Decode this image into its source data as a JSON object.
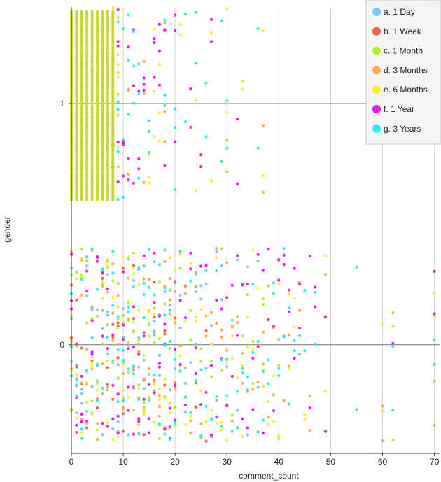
{
  "chart_data": {
    "type": "scatter",
    "title": "",
    "xlabel": "comment_count",
    "ylabel": "gender",
    "xlim": [
      0,
      71
    ],
    "ylim": [
      -0.45,
      1.4
    ],
    "x_ticks": [
      0,
      10,
      20,
      30,
      40,
      50,
      60,
      70
    ],
    "y_ticks": [
      0,
      1
    ],
    "x_grid": true,
    "y_grid": true,
    "jitter": "vertical jitter of ±0.4 around each gender value (0 and 1)",
    "legend": {
      "placement": "top-right"
    },
    "series": [
      {
        "name": "a. 1 Day",
        "color": "#7EC8F4"
      },
      {
        "name": "b. 1 Week",
        "color": "#F4604A"
      },
      {
        "name": "c. 1 Month",
        "color": "#B5EC3A"
      },
      {
        "name": "d. 3 Months",
        "color": "#F5AE50"
      },
      {
        "name": "e. 6 Months",
        "color": "#F7EF2E"
      },
      {
        "name": "f. 1 Year",
        "color": "#E61DEB"
      },
      {
        "name": "g. 3 Years",
        "color": "#28EFE9"
      }
    ],
    "points": [
      [
        1,
        1,
        2
      ],
      [
        1,
        1,
        4
      ],
      [
        2,
        1,
        3
      ],
      [
        2,
        1,
        4
      ],
      [
        3,
        1,
        2
      ],
      [
        3,
        1,
        4
      ],
      [
        4,
        1,
        3
      ],
      [
        4,
        1,
        4
      ],
      [
        5,
        1,
        3
      ],
      [
        5,
        1,
        2
      ],
      [
        6,
        1,
        4
      ],
      [
        6,
        1,
        2
      ],
      [
        7,
        1,
        4
      ],
      [
        7,
        1,
        6
      ],
      [
        7,
        1,
        3
      ],
      [
        8,
        1,
        4
      ],
      [
        8,
        1,
        5
      ],
      [
        8,
        1,
        6
      ],
      [
        8,
        1,
        3
      ],
      [
        9,
        1,
        4
      ],
      [
        9,
        1,
        5
      ],
      [
        9,
        1,
        6
      ],
      [
        9,
        1,
        2
      ],
      [
        10,
        1,
        5
      ],
      [
        10,
        1,
        6
      ],
      [
        11,
        1,
        5
      ],
      [
        11,
        1,
        6
      ],
      [
        11,
        1,
        3
      ],
      [
        12,
        1,
        5
      ],
      [
        12,
        1,
        6
      ],
      [
        13,
        1,
        5
      ],
      [
        13,
        1,
        6
      ],
      [
        14,
        1,
        3
      ],
      [
        14,
        1,
        5
      ],
      [
        15,
        1,
        4
      ],
      [
        15,
        1,
        6
      ],
      [
        16,
        1,
        4
      ],
      [
        16,
        1,
        5
      ],
      [
        17,
        1,
        4
      ],
      [
        17,
        1,
        5
      ],
      [
        18,
        1,
        5
      ],
      [
        18,
        1,
        6
      ],
      [
        18,
        1,
        3
      ],
      [
        20,
        1,
        5
      ],
      [
        20,
        1,
        6
      ],
      [
        21,
        1,
        4
      ],
      [
        22,
        1,
        6
      ],
      [
        23,
        1,
        5
      ],
      [
        24,
        1,
        4
      ],
      [
        24,
        1,
        6
      ],
      [
        25,
        1,
        5
      ],
      [
        26,
        1,
        6
      ],
      [
        27,
        1,
        4
      ],
      [
        27,
        1,
        5
      ],
      [
        29,
        1,
        6
      ],
      [
        30,
        1,
        6
      ],
      [
        30,
        1,
        3
      ],
      [
        30,
        1,
        4
      ],
      [
        32,
        1,
        5
      ],
      [
        33,
        1,
        4
      ],
      [
        36,
        1,
        6
      ],
      [
        37,
        1,
        3
      ],
      [
        37,
        1,
        4
      ],
      [
        0,
        0,
        0
      ],
      [
        0,
        0,
        1
      ],
      [
        0,
        0,
        2
      ],
      [
        0,
        0,
        3
      ],
      [
        0,
        0,
        4
      ],
      [
        0,
        0,
        5
      ],
      [
        0,
        0,
        6
      ],
      [
        1,
        0,
        0
      ],
      [
        1,
        0,
        1
      ],
      [
        1,
        0,
        2
      ],
      [
        1,
        0,
        3
      ],
      [
        1,
        0,
        4
      ],
      [
        1,
        0,
        5
      ],
      [
        1,
        0,
        6
      ],
      [
        2,
        0,
        0
      ],
      [
        2,
        0,
        1
      ],
      [
        2,
        0,
        2
      ],
      [
        2,
        0,
        3
      ],
      [
        2,
        0,
        4
      ],
      [
        2,
        0,
        5
      ],
      [
        2,
        0,
        6
      ],
      [
        3,
        0,
        0
      ],
      [
        3,
        0,
        1
      ],
      [
        3,
        0,
        2
      ],
      [
        3,
        0,
        3
      ],
      [
        3,
        0,
        4
      ],
      [
        3,
        0,
        5
      ],
      [
        3,
        0,
        6
      ],
      [
        4,
        0,
        0
      ],
      [
        4,
        0,
        1
      ],
      [
        4,
        0,
        2
      ],
      [
        4,
        0,
        3
      ],
      [
        4,
        0,
        4
      ],
      [
        4,
        0,
        5
      ],
      [
        4,
        0,
        6
      ],
      [
        5,
        0,
        0
      ],
      [
        5,
        0,
        1
      ],
      [
        5,
        0,
        2
      ],
      [
        5,
        0,
        3
      ],
      [
        5,
        0,
        4
      ],
      [
        5,
        0,
        5
      ],
      [
        5,
        0,
        6
      ],
      [
        6,
        0,
        0
      ],
      [
        6,
        0,
        1
      ],
      [
        6,
        0,
        2
      ],
      [
        6,
        0,
        3
      ],
      [
        6,
        0,
        4
      ],
      [
        6,
        0,
        5
      ],
      [
        6,
        0,
        6
      ],
      [
        7,
        0,
        0
      ],
      [
        7,
        0,
        1
      ],
      [
        7,
        0,
        2
      ],
      [
        7,
        0,
        3
      ],
      [
        7,
        0,
        4
      ],
      [
        7,
        0,
        5
      ],
      [
        7,
        0,
        6
      ],
      [
        8,
        0,
        0
      ],
      [
        8,
        0,
        1
      ],
      [
        8,
        0,
        2
      ],
      [
        8,
        0,
        3
      ],
      [
        8,
        0,
        4
      ],
      [
        8,
        0,
        5
      ],
      [
        8,
        0,
        6
      ],
      [
        9,
        0,
        0
      ],
      [
        9,
        0,
        1
      ],
      [
        9,
        0,
        2
      ],
      [
        9,
        0,
        3
      ],
      [
        9,
        0,
        4
      ],
      [
        9,
        0,
        5
      ],
      [
        9,
        0,
        6
      ],
      [
        10,
        0,
        0
      ],
      [
        10,
        0,
        1
      ],
      [
        10,
        0,
        2
      ],
      [
        10,
        0,
        3
      ],
      [
        10,
        0,
        4
      ],
      [
        10,
        0,
        5
      ],
      [
        10,
        0,
        6
      ],
      [
        11,
        0,
        0
      ],
      [
        11,
        0,
        2
      ],
      [
        11,
        0,
        3
      ],
      [
        11,
        0,
        4
      ],
      [
        11,
        0,
        5
      ],
      [
        11,
        0,
        6
      ],
      [
        12,
        0,
        0
      ],
      [
        12,
        0,
        1
      ],
      [
        12,
        0,
        2
      ],
      [
        12,
        0,
        3
      ],
      [
        12,
        0,
        4
      ],
      [
        12,
        0,
        5
      ],
      [
        12,
        0,
        6
      ],
      [
        13,
        0,
        0
      ],
      [
        13,
        0,
        2
      ],
      [
        13,
        0,
        3
      ],
      [
        13,
        0,
        4
      ],
      [
        13,
        0,
        5
      ],
      [
        13,
        0,
        6
      ],
      [
        14,
        0,
        0
      ],
      [
        14,
        0,
        1
      ],
      [
        14,
        0,
        2
      ],
      [
        14,
        0,
        3
      ],
      [
        14,
        0,
        4
      ],
      [
        14,
        0,
        5
      ],
      [
        14,
        0,
        6
      ],
      [
        15,
        0,
        0
      ],
      [
        15,
        0,
        2
      ],
      [
        15,
        0,
        3
      ],
      [
        15,
        0,
        4
      ],
      [
        15,
        0,
        5
      ],
      [
        15,
        0,
        6
      ],
      [
        16,
        0,
        0
      ],
      [
        16,
        0,
        1
      ],
      [
        16,
        0,
        2
      ],
      [
        16,
        0,
        3
      ],
      [
        16,
        0,
        4
      ],
      [
        16,
        0,
        5
      ],
      [
        16,
        0,
        6
      ],
      [
        17,
        0,
        0
      ],
      [
        17,
        0,
        2
      ],
      [
        17,
        0,
        3
      ],
      [
        17,
        0,
        4
      ],
      [
        17,
        0,
        5
      ],
      [
        17,
        0,
        6
      ],
      [
        18,
        0,
        0
      ],
      [
        18,
        0,
        1
      ],
      [
        18,
        0,
        2
      ],
      [
        18,
        0,
        3
      ],
      [
        18,
        0,
        4
      ],
      [
        18,
        0,
        5
      ],
      [
        18,
        0,
        6
      ],
      [
        19,
        0,
        0
      ],
      [
        19,
        0,
        2
      ],
      [
        19,
        0,
        3
      ],
      [
        19,
        0,
        4
      ],
      [
        19,
        0,
        5
      ],
      [
        19,
        0,
        6
      ],
      [
        20,
        0,
        0
      ],
      [
        20,
        0,
        1
      ],
      [
        20,
        0,
        2
      ],
      [
        20,
        0,
        3
      ],
      [
        20,
        0,
        4
      ],
      [
        20,
        0,
        5
      ],
      [
        20,
        0,
        6
      ],
      [
        21,
        0,
        0
      ],
      [
        21,
        0,
        2
      ],
      [
        21,
        0,
        3
      ],
      [
        21,
        0,
        4
      ],
      [
        21,
        0,
        5
      ],
      [
        21,
        0,
        6
      ],
      [
        22,
        0,
        0
      ],
      [
        22,
        0,
        1
      ],
      [
        22,
        0,
        3
      ],
      [
        22,
        0,
        4
      ],
      [
        22,
        0,
        5
      ],
      [
        22,
        0,
        6
      ],
      [
        23,
        0,
        0
      ],
      [
        23,
        0,
        2
      ],
      [
        23,
        0,
        3
      ],
      [
        23,
        0,
        4
      ],
      [
        23,
        0,
        5
      ],
      [
        23,
        0,
        6
      ],
      [
        24,
        0,
        0
      ],
      [
        24,
        0,
        1
      ],
      [
        24,
        0,
        3
      ],
      [
        24,
        0,
        4
      ],
      [
        24,
        0,
        5
      ],
      [
        24,
        0,
        6
      ],
      [
        25,
        0,
        0
      ],
      [
        25,
        0,
        2
      ],
      [
        25,
        0,
        3
      ],
      [
        25,
        0,
        4
      ],
      [
        25,
        0,
        5
      ],
      [
        25,
        0,
        6
      ],
      [
        26,
        0,
        0
      ],
      [
        26,
        0,
        1
      ],
      [
        26,
        0,
        3
      ],
      [
        26,
        0,
        4
      ],
      [
        26,
        0,
        5
      ],
      [
        26,
        0,
        6
      ],
      [
        27,
        0,
        0
      ],
      [
        27,
        0,
        2
      ],
      [
        27,
        0,
        3
      ],
      [
        27,
        0,
        4
      ],
      [
        27,
        0,
        5
      ],
      [
        27,
        0,
        6
      ],
      [
        28,
        0,
        0
      ],
      [
        28,
        0,
        3
      ],
      [
        28,
        0,
        4
      ],
      [
        28,
        0,
        5
      ],
      [
        28,
        0,
        6
      ],
      [
        29,
        0,
        0
      ],
      [
        29,
        0,
        2
      ],
      [
        29,
        0,
        3
      ],
      [
        29,
        0,
        4
      ],
      [
        29,
        0,
        5
      ],
      [
        29,
        0,
        6
      ],
      [
        30,
        0,
        0
      ],
      [
        30,
        0,
        3
      ],
      [
        30,
        0,
        4
      ],
      [
        30,
        0,
        5
      ],
      [
        30,
        0,
        6
      ],
      [
        31,
        0,
        2
      ],
      [
        31,
        0,
        3
      ],
      [
        31,
        0,
        4
      ],
      [
        31,
        0,
        5
      ],
      [
        31,
        0,
        6
      ],
      [
        32,
        0,
        0
      ],
      [
        32,
        0,
        3
      ],
      [
        32,
        0,
        4
      ],
      [
        32,
        0,
        5
      ],
      [
        32,
        0,
        6
      ],
      [
        33,
        0,
        2
      ],
      [
        33,
        0,
        3
      ],
      [
        33,
        0,
        4
      ],
      [
        33,
        0,
        5
      ],
      [
        33,
        0,
        6
      ],
      [
        34,
        0,
        0
      ],
      [
        34,
        0,
        3
      ],
      [
        34,
        0,
        4
      ],
      [
        34,
        0,
        5
      ],
      [
        34,
        0,
        6
      ],
      [
        35,
        0,
        2
      ],
      [
        35,
        0,
        3
      ],
      [
        35,
        0,
        4
      ],
      [
        35,
        0,
        5
      ],
      [
        35,
        0,
        6
      ],
      [
        36,
        0,
        0
      ],
      [
        36,
        0,
        3
      ],
      [
        36,
        0,
        4
      ],
      [
        36,
        0,
        5
      ],
      [
        36,
        0,
        6
      ],
      [
        37,
        0,
        2
      ],
      [
        37,
        0,
        3
      ],
      [
        37,
        0,
        4
      ],
      [
        37,
        0,
        5
      ],
      [
        37,
        0,
        6
      ],
      [
        38,
        0,
        3
      ],
      [
        38,
        0,
        4
      ],
      [
        38,
        0,
        5
      ],
      [
        38,
        0,
        6
      ],
      [
        39,
        0,
        3
      ],
      [
        39,
        0,
        4
      ],
      [
        39,
        0,
        5
      ],
      [
        39,
        0,
        6
      ],
      [
        40,
        0,
        2
      ],
      [
        40,
        0,
        3
      ],
      [
        40,
        0,
        4
      ],
      [
        40,
        0,
        5
      ],
      [
        40,
        0,
        6
      ],
      [
        41,
        0,
        3
      ],
      [
        41,
        0,
        5
      ],
      [
        41,
        0,
        6
      ],
      [
        42,
        0,
        3
      ],
      [
        42,
        0,
        4
      ],
      [
        42,
        0,
        5
      ],
      [
        42,
        0,
        6
      ],
      [
        43,
        0,
        4
      ],
      [
        43,
        0,
        5
      ],
      [
        43,
        0,
        6
      ],
      [
        44,
        0,
        3
      ],
      [
        44,
        0,
        5
      ],
      [
        44,
        0,
        6
      ],
      [
        45,
        0,
        4
      ],
      [
        45,
        0,
        6
      ],
      [
        46,
        0,
        3
      ],
      [
        46,
        0,
        5
      ],
      [
        47,
        0,
        5
      ],
      [
        47,
        0,
        6
      ],
      [
        49,
        0,
        3
      ],
      [
        49,
        0,
        4
      ],
      [
        49,
        0,
        5
      ],
      [
        55,
        0,
        6
      ],
      [
        60,
        0,
        3
      ],
      [
        60,
        0,
        4
      ],
      [
        62,
        0,
        2
      ],
      [
        62,
        0,
        3
      ],
      [
        62,
        0,
        5
      ],
      [
        62,
        0,
        6
      ],
      [
        70,
        0,
        3
      ],
      [
        70,
        0,
        4
      ],
      [
        70,
        0,
        5
      ],
      [
        70,
        0,
        6
      ]
    ]
  }
}
